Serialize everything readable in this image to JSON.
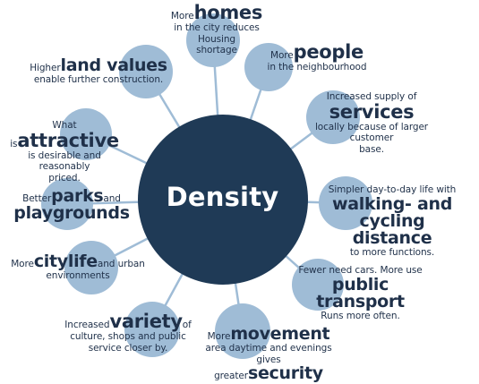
{
  "center": {
    "label": "Density",
    "color": "#1f3a56"
  },
  "colors": {
    "satellite": "#9fbcd6",
    "connector": "#9fbcd6",
    "text": "#1f3049"
  },
  "nodes": [
    {
      "id": "homes",
      "pre": "More",
      "key": "homes",
      "post": "",
      "line2": "in the city reduces Housing",
      "line3": "shortage"
    },
    {
      "id": "people",
      "pre": "More",
      "key": "people",
      "post": "",
      "line2": "in the neighbourhood",
      "line3": ""
    },
    {
      "id": "services",
      "pre": "Increased supply of",
      "key": "services",
      "post": "",
      "line2": "locally because of larger customer",
      "line3": "base."
    },
    {
      "id": "walking",
      "pre": "Simpler day-to-day life with",
      "key": "walking- and cycling",
      "key2": "distance",
      "post": "",
      "line2": "to more functions.",
      "line3": ""
    },
    {
      "id": "transport",
      "pre": "Fewer need cars. More use",
      "key": "public transport",
      "post": "",
      "line2": "Runs more often.",
      "line3": ""
    },
    {
      "id": "movement",
      "pre": "More",
      "key": "movement",
      "post": "",
      "line2": "area daytime and evenings",
      "line3": "gives greater",
      "key2": "security"
    },
    {
      "id": "variety",
      "pre": "Increased",
      "key": "variety",
      "post": "of",
      "line2": "culture, shops and public",
      "line3": "service closer by."
    },
    {
      "id": "citylife",
      "pre": "More",
      "key": "citylife",
      "post": "and urban",
      "line2": "environments",
      "line3": ""
    },
    {
      "id": "parks",
      "pre": "Better",
      "key": "parks",
      "post": "and",
      "line2": "playgrounds",
      "line3": ""
    },
    {
      "id": "attractive",
      "pre": "What is",
      "key": "attractive",
      "post": "",
      "line2": "is desirable and reasonably",
      "line3": "priced."
    },
    {
      "id": "landvalues",
      "pre": "Higher",
      "key": "land values",
      "post": "",
      "line2": "enable further construction.",
      "line3": ""
    }
  ]
}
